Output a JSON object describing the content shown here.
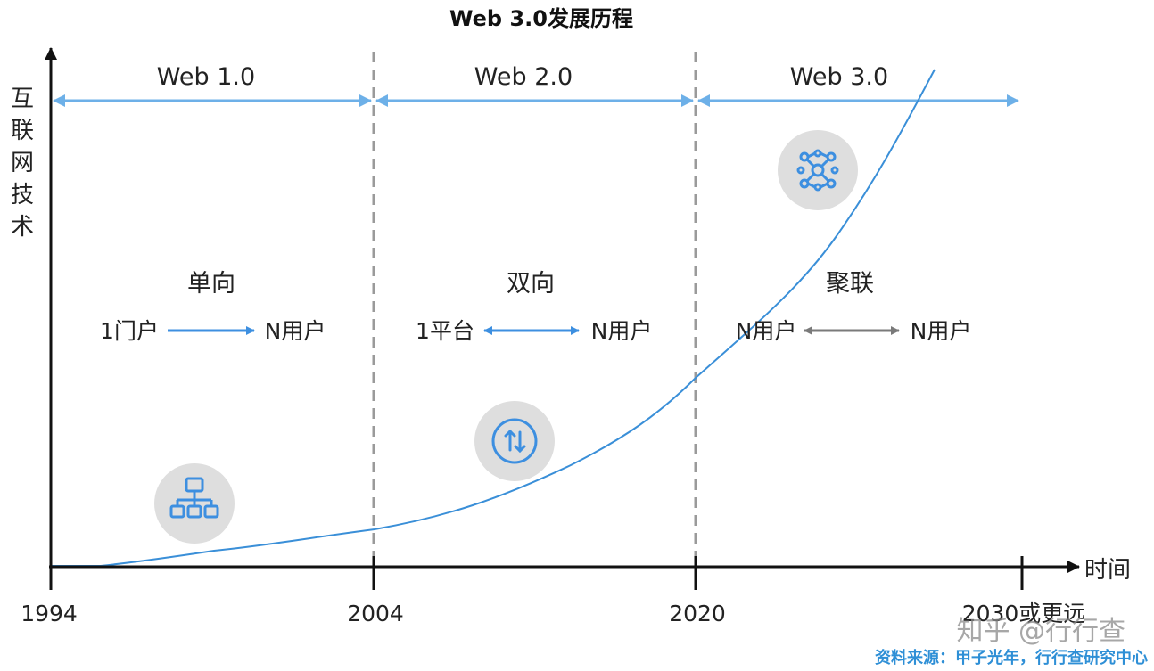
{
  "title": "Web 3.0发展历程",
  "y_axis_label": "互联网技术",
  "x_axis_label": "时间",
  "ticks": [
    "1994",
    "2004",
    "2020",
    "2030或更远"
  ],
  "eras": [
    {
      "name": "Web 1.0",
      "mode": "单向",
      "left_node": "1门户",
      "right_node": "N用户",
      "arrow": "one-way",
      "arrow_color": "#3d8fe0",
      "icon": "hierarchy-icon"
    },
    {
      "name": "Web 2.0",
      "mode": "双向",
      "left_node": "1平台",
      "right_node": "N用户",
      "arrow": "two-way",
      "arrow_color": "#3d8fe0",
      "icon": "exchange-icon"
    },
    {
      "name": "Web 3.0",
      "mode": "聚联",
      "left_node": "N用户",
      "right_node": "N用户",
      "arrow": "two-way",
      "arrow_color": "#7a7a7a",
      "icon": "network-icon"
    }
  ],
  "source": "资料来源：甲子光年，行行查研究中心",
  "watermark": "知乎 @行行查",
  "colors": {
    "accent": "#3d8fe0",
    "era_arrow": "#6db0e8",
    "curve": "#3a8fd8",
    "icon_bg": "#dedede",
    "divider": "#9a9a9a"
  }
}
